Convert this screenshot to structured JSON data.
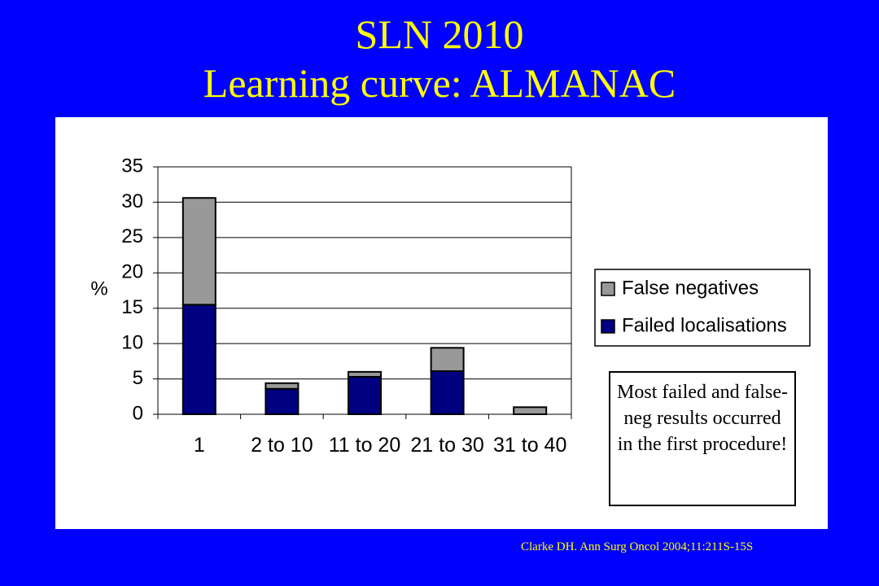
{
  "chart_data": {
    "type": "stacked_bar",
    "title": "SLN 2010",
    "subtitle": "Learning curve: ALMANAC",
    "y_label": "%",
    "categories": [
      "1",
      "2 to 10",
      "11 to 20",
      "21 to 30",
      "31 to 40"
    ],
    "series": [
      {
        "name": "False negatives",
        "color": "#999999",
        "values": [
          15.1,
          0.8,
          0.7,
          3.3,
          1.0
        ]
      },
      {
        "name": "Failed localisations",
        "color": "#000080",
        "values": [
          15.5,
          3.6,
          5.3,
          6.1,
          0
        ]
      }
    ],
    "ylim": [
      0,
      35
    ],
    "yticks": [
      0,
      5,
      10,
      15,
      20,
      25,
      30,
      35
    ],
    "grid": true,
    "legend": "right",
    "annotation": "Most failed and false-neg results occurred in the first procedure!",
    "source": "Clarke DH. Ann Surg Oncol 2004;11:211S-15S"
  }
}
